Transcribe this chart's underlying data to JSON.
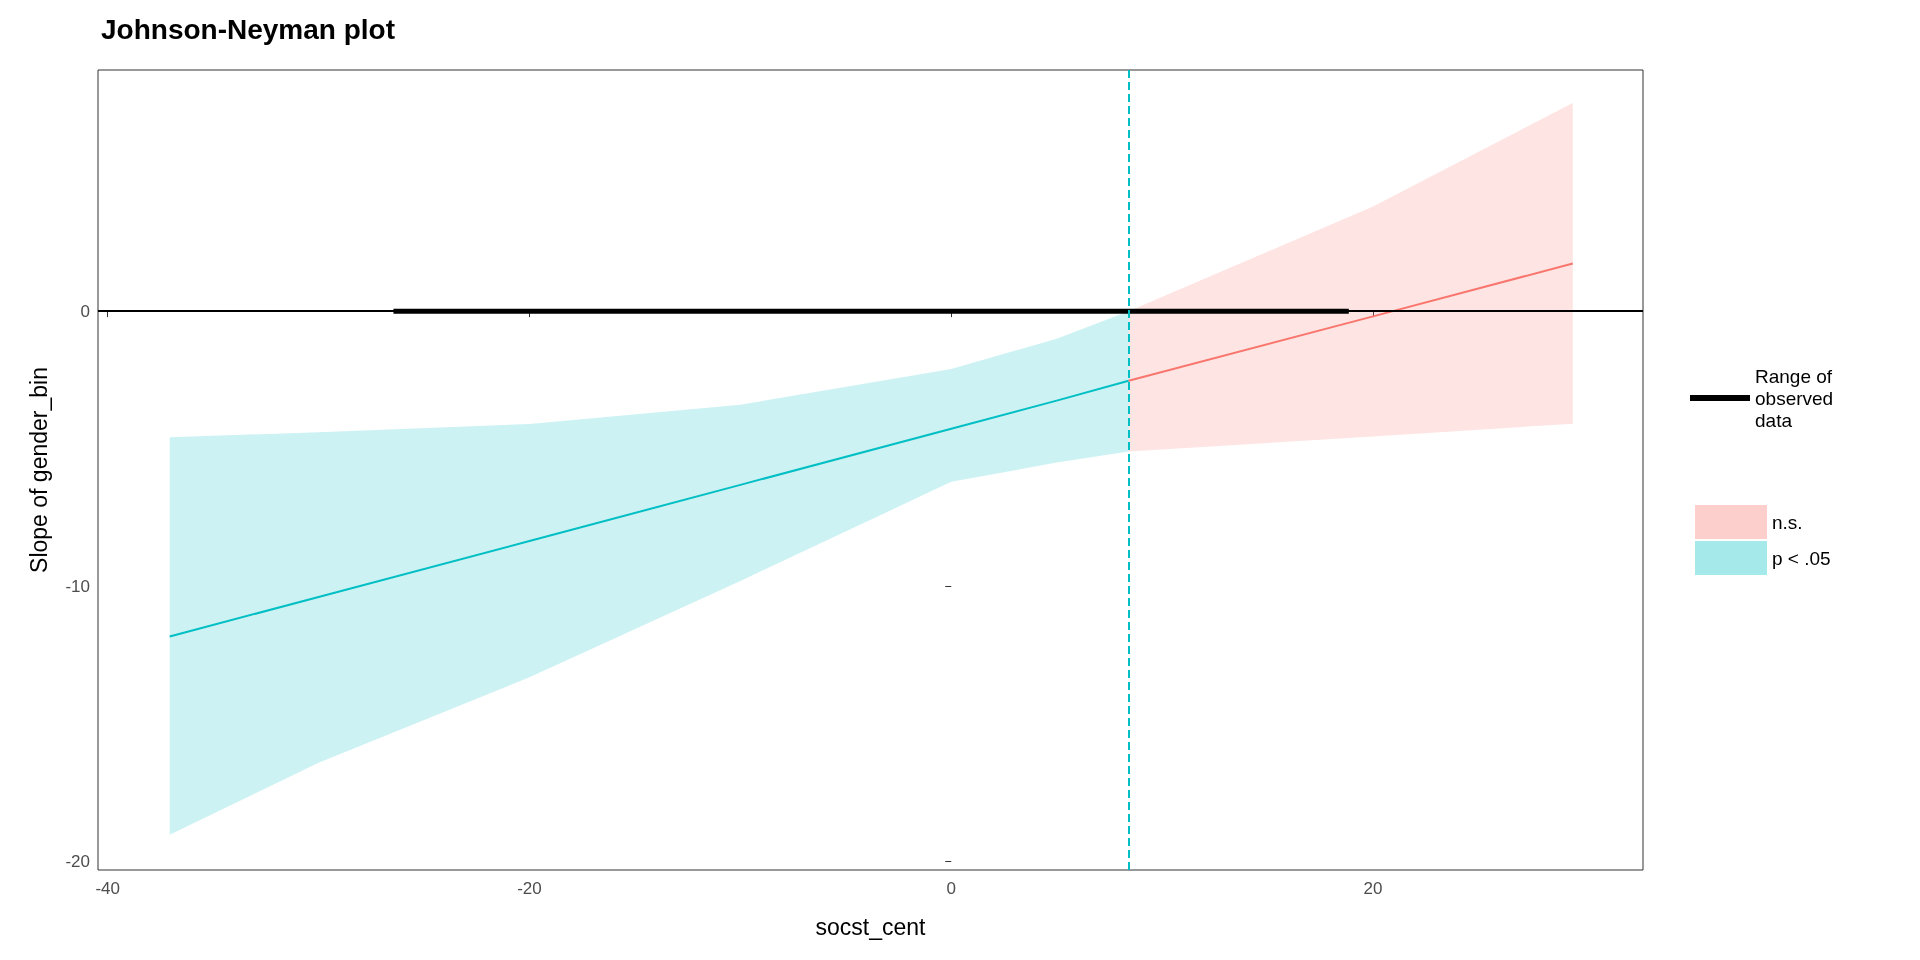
{
  "chart_data": {
    "type": "line",
    "title": "Johnson-Neyman plot",
    "xlabel": "socst_cent",
    "ylabel": "Slope of gender_bin",
    "xlim": [
      -40.46,
      32.8
    ],
    "xticks": [
      -40,
      -20,
      0,
      20
    ],
    "ylim": [
      -20.3,
      8.76
    ],
    "yticks": [
      -20,
      -10,
      0
    ],
    "series": [
      {
        "name": "p < .05",
        "color": "#00bfc4",
        "x": [
          -37.06,
          -30,
          -20,
          -10,
          0,
          5,
          8.41
        ],
        "values": [
          -11.82,
          -10.38,
          -8.35,
          -6.31,
          -4.27,
          -3.25,
          -2.53
        ],
        "lower": [
          -19.02,
          -16.4,
          -13.3,
          -9.8,
          -6.2,
          -5.5,
          -5.1
        ],
        "upper": [
          -4.58,
          -4.4,
          -4.1,
          -3.4,
          -2.1,
          -1.0,
          0
        ]
      },
      {
        "name": "n.s.",
        "color": "#f8766d",
        "x": [
          8.41,
          20,
          29.47
        ],
        "values": [
          -2.53,
          -0.19,
          1.73
        ],
        "lower": [
          -5.1,
          -4.55,
          -4.09
        ],
        "upper": [
          0,
          3.8,
          7.56
        ]
      },
      {
        "name": "Range of observed data",
        "color": "#000000",
        "x": [
          -26.45,
          18.85
        ],
        "values": [
          0,
          0
        ]
      }
    ],
    "ref_lines": [
      {
        "axis": "y",
        "value": 0,
        "color": "#000000",
        "line_style": "solid"
      },
      {
        "axis": "x",
        "value": 8.41,
        "color": "#00bfc4",
        "line_style": "dashed"
      }
    ],
    "legend": "right",
    "grid": false,
    "marker": "none",
    "line_style": "solid"
  }
}
